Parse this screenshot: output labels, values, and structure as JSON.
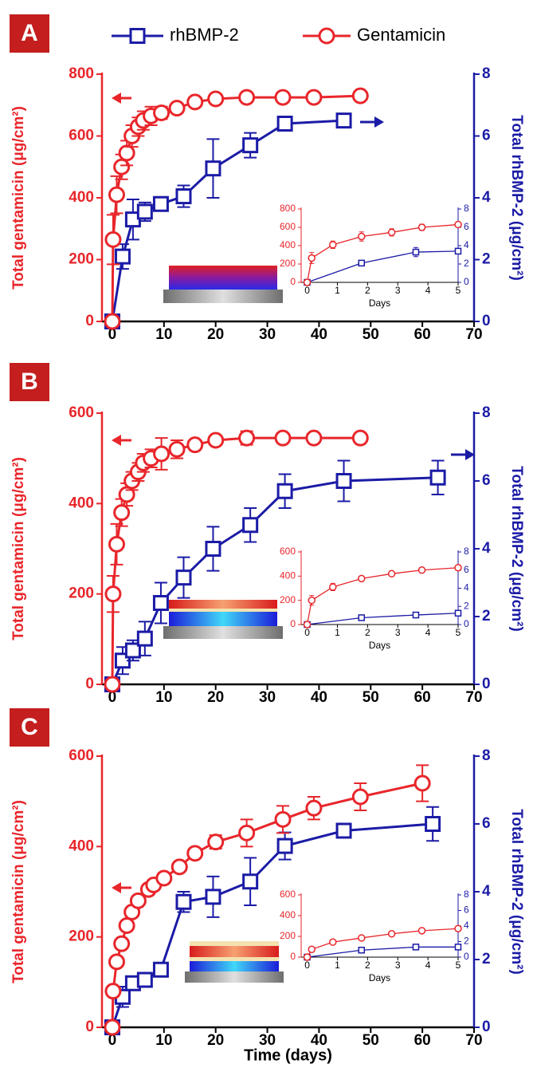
{
  "chart_data": [
    {
      "type": "line",
      "panel": "A",
      "xlim": [
        -2,
        70
      ],
      "xticks": [
        0,
        10,
        20,
        30,
        40,
        50,
        60,
        70
      ],
      "ylim": [
        0,
        800
      ],
      "yticks": [
        0,
        200,
        400,
        600,
        800
      ],
      "y2lim": [
        0,
        8
      ],
      "y2ticks": [
        0,
        2,
        4,
        6,
        8
      ],
      "ylabel": "Total gentamicin (μg/cm²)",
      "y2label": "Total rhBMP-2 (μg/cm²)",
      "series": [
        {
          "name": "rhBMP-2",
          "color": "#1b1ba6",
          "axis": "y2",
          "marker": "square",
          "x": [
            0,
            2,
            4,
            6.3,
            9.4,
            13.8,
            19.5,
            26.7,
            33.4,
            44.8
          ],
          "values": [
            0,
            2.1,
            3.3,
            3.55,
            3.8,
            4.05,
            4.95,
            5.7,
            6.4,
            6.5
          ],
          "errors": [
            0,
            0.4,
            0.65,
            0.3,
            0.2,
            0.35,
            0.95,
            0.4,
            0.15,
            0.1
          ]
        },
        {
          "name": "Gentamicin",
          "color": "#e8262b",
          "marker": "circle",
          "x": [
            0,
            0.15,
            0.85,
            1.8,
            2.8,
            3.8,
            5,
            6,
            7.5,
            9.5,
            12.5,
            16,
            20,
            26,
            33,
            39,
            48
          ],
          "values": [
            0,
            265,
            410,
            500,
            545,
            600,
            630,
            650,
            665,
            675,
            690,
            710,
            720,
            725,
            725,
            725,
            730
          ],
          "errors": [
            0,
            80,
            60,
            40,
            40,
            35,
            30,
            30,
            30,
            20,
            15,
            10,
            5,
            5,
            5,
            5,
            5
          ]
        }
      ],
      "inset": {
        "type": "line",
        "xlabel": "Days",
        "xlim": [
          -0.2,
          5
        ],
        "xticks": [
          0,
          1,
          2,
          3,
          4,
          5
        ],
        "ylim": [
          0,
          800
        ],
        "yticks": [
          0,
          200,
          400,
          600,
          800
        ],
        "y2lim": [
          0,
          8
        ],
        "y2ticks": [
          0,
          2,
          4,
          6,
          8
        ],
        "series": [
          {
            "color": "#1b1ba6",
            "axis": "y2",
            "marker": "square",
            "x": [
              0,
              1.8,
              3.6,
              5
            ],
            "values": [
              0,
              2.1,
              3.3,
              3.4
            ],
            "errors": [
              0,
              0.15,
              0.5,
              0
            ]
          },
          {
            "color": "#e8262b",
            "marker": "circle",
            "x": [
              0,
              0.15,
              0.85,
              1.8,
              2.8,
              3.8,
              5
            ],
            "values": [
              0,
              265,
              410,
              500,
              545,
              600,
              630
            ],
            "errors": [
              20,
              60,
              40,
              50,
              40,
              35,
              0
            ]
          }
        ]
      }
    },
    {
      "type": "line",
      "panel": "B",
      "xlim": [
        -2,
        70
      ],
      "xticks": [
        0,
        10,
        20,
        30,
        40,
        50,
        60,
        70
      ],
      "ylim": [
        0,
        600
      ],
      "yticks": [
        0,
        200,
        400,
        600
      ],
      "y2lim": [
        0,
        8
      ],
      "y2ticks": [
        0,
        2,
        4,
        6,
        8
      ],
      "ylabel": "Total gentamicin (μg/cm²)",
      "y2label": "Total rhBMP-2 (μg/cm²)",
      "series": [
        {
          "color": "#1b1ba6",
          "axis": "y2",
          "marker": "square",
          "x": [
            0,
            2,
            4,
            6.3,
            9.4,
            13.8,
            19.5,
            26.7,
            33.4,
            44.8,
            63
          ],
          "values": [
            0,
            0.7,
            1.0,
            1.35,
            2.4,
            3.15,
            4.0,
            4.7,
            5.7,
            6.0,
            6.1
          ],
          "errors": [
            0,
            0.4,
            0.3,
            0.5,
            0.6,
            0.6,
            0.65,
            0.5,
            0.5,
            0.6,
            0.5
          ]
        },
        {
          "color": "#e8262b",
          "marker": "circle",
          "x": [
            0,
            0.15,
            0.85,
            1.8,
            2.8,
            3.8,
            5,
            6,
            7.5,
            9.5,
            12.5,
            16,
            20,
            26,
            33,
            39,
            48
          ],
          "values": [
            0,
            200,
            310,
            380,
            420,
            450,
            470,
            490,
            500,
            510,
            520,
            530,
            540,
            545,
            545,
            545,
            545
          ],
          "errors": [
            0,
            40,
            45,
            30,
            25,
            20,
            20,
            20,
            20,
            35,
            20,
            10,
            5,
            15,
            10,
            10,
            5
          ]
        }
      ],
      "inset": {
        "type": "line",
        "xlabel": "Days",
        "xlim": [
          -0.2,
          5
        ],
        "xticks": [
          0,
          1,
          2,
          3,
          4,
          5
        ],
        "ylim": [
          0,
          600
        ],
        "yticks": [
          0,
          200,
          400,
          600
        ],
        "y2lim": [
          0,
          8
        ],
        "y2ticks": [
          0,
          2,
          4,
          6,
          8
        ],
        "series": [
          {
            "color": "#1b1ba6",
            "axis": "y2",
            "marker": "square",
            "x": [
              0,
              1.8,
              3.6,
              5
            ],
            "values": [
              0,
              0.75,
              1.05,
              1.25
            ],
            "errors": [
              0,
              0.1,
              0.1,
              0
            ]
          },
          {
            "color": "#e8262b",
            "marker": "circle",
            "x": [
              0,
              0.15,
              0.85,
              1.8,
              2.8,
              3.8,
              5
            ],
            "values": [
              0,
              200,
              310,
              380,
              420,
              450,
              470
            ],
            "errors": [
              10,
              40,
              30,
              20,
              15,
              20,
              0
            ]
          }
        ]
      }
    },
    {
      "type": "line",
      "panel": "C",
      "xlabel": "Time (days)",
      "xlim": [
        -2,
        70
      ],
      "xticks": [
        0,
        10,
        20,
        30,
        40,
        50,
        60,
        70
      ],
      "ylim": [
        0,
        600
      ],
      "yticks": [
        0,
        200,
        400,
        600
      ],
      "y2lim": [
        0,
        8
      ],
      "y2ticks": [
        0,
        2,
        4,
        6,
        8
      ],
      "ylabel": "Total gentamicin (μg/cm²)",
      "y2label": "Total rhBMP-2 (μg/cm²)",
      "series": [
        {
          "color": "#1b1ba6",
          "axis": "y2",
          "marker": "square",
          "x": [
            0,
            2,
            4,
            6.3,
            9.4,
            13.8,
            19.5,
            26.7,
            33.4,
            44.8,
            62
          ],
          "values": [
            0,
            0.9,
            1.3,
            1.4,
            1.7,
            3.7,
            3.85,
            4.3,
            5.35,
            5.8,
            6.0
          ],
          "errors": [
            0,
            0.3,
            0.2,
            0.2,
            0.2,
            0.3,
            0.6,
            0.7,
            0.4,
            0.2,
            0.5
          ]
        },
        {
          "color": "#e8262b",
          "marker": "circle",
          "x": [
            0,
            0.15,
            0.85,
            1.8,
            2.8,
            3.8,
            5,
            7,
            8,
            10,
            13,
            16,
            20,
            26,
            33,
            39,
            48,
            60
          ],
          "values": [
            0,
            80,
            145,
            185,
            225,
            255,
            280,
            305,
            315,
            330,
            355,
            385,
            410,
            430,
            460,
            485,
            510,
            540
          ],
          "errors": [
            0,
            10,
            10,
            10,
            10,
            10,
            10,
            10,
            10,
            10,
            10,
            10,
            15,
            30,
            30,
            25,
            30,
            40
          ]
        }
      ],
      "inset": {
        "type": "line",
        "xlabel": "Days",
        "xlim": [
          -0.2,
          5
        ],
        "xticks": [
          0,
          1,
          2,
          3,
          4,
          5
        ],
        "ylim": [
          0,
          600
        ],
        "yticks": [
          0,
          200,
          400,
          600
        ],
        "y2lim": [
          0,
          8
        ],
        "y2ticks": [
          0,
          2,
          4,
          6,
          8
        ],
        "series": [
          {
            "color": "#1b1ba6",
            "axis": "y2",
            "marker": "square",
            "x": [
              0,
              1.8,
              3.6,
              5
            ],
            "values": [
              0,
              0.9,
              1.3,
              1.3
            ],
            "errors": [
              0,
              0.1,
              0.1,
              0
            ]
          },
          {
            "color": "#e8262b",
            "marker": "circle",
            "x": [
              0,
              0.15,
              0.85,
              1.8,
              2.8,
              3.8,
              5
            ],
            "values": [
              0,
              75,
              145,
              185,
              225,
              255,
              275
            ],
            "errors": [
              5,
              10,
              10,
              10,
              10,
              10,
              0
            ]
          }
        ]
      }
    }
  ]
}
